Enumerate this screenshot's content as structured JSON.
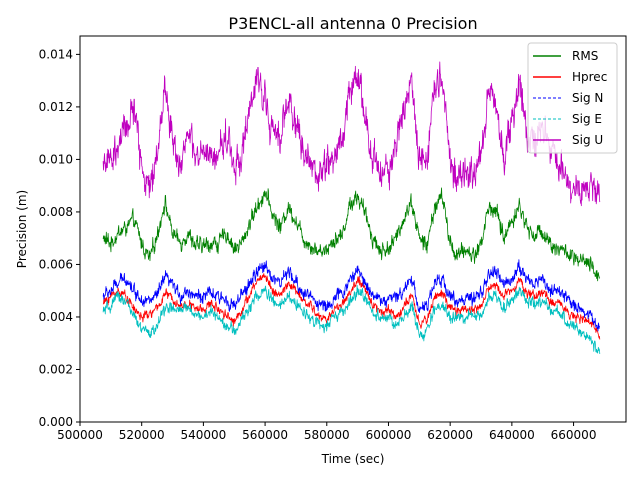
{
  "chart_data": {
    "type": "line",
    "title": "P3ENCL-all antenna 0 Precision",
    "xlabel": "Time (sec)",
    "ylabel": "Precision (m)",
    "xlim": [
      500000,
      677000
    ],
    "ylim": [
      0.0,
      0.0147
    ],
    "x_ticks": [
      500000,
      520000,
      540000,
      560000,
      580000,
      600000,
      620000,
      640000,
      660000
    ],
    "x_tick_labels": [
      "500000",
      "520000",
      "540000",
      "560000",
      "580000",
      "600000",
      "620000",
      "640000",
      "660000"
    ],
    "y_ticks": [
      0.0,
      0.002,
      0.004,
      0.006,
      0.008,
      0.01,
      0.012,
      0.014
    ],
    "y_tick_labels": [
      "0.000",
      "0.002",
      "0.004",
      "0.006",
      "0.008",
      "0.010",
      "0.012",
      "0.014"
    ],
    "legend_position": "top-right",
    "x": [
      507500,
      510000,
      512500,
      515000,
      517500,
      520000,
      522500,
      525000,
      527500,
      530000,
      532500,
      535000,
      537500,
      540000,
      542500,
      545000,
      547500,
      550000,
      552500,
      555000,
      557500,
      560000,
      562500,
      565000,
      567500,
      570000,
      572500,
      575000,
      577500,
      580000,
      582500,
      585000,
      587500,
      590000,
      592500,
      595000,
      597500,
      600000,
      602500,
      605000,
      607500,
      610000,
      612500,
      615000,
      617500,
      620000,
      622500,
      625000,
      627500,
      630000,
      632500,
      635000,
      637500,
      640000,
      642500,
      645000,
      647500,
      650000,
      652500,
      655000,
      657500,
      660000,
      662500,
      665000,
      667500,
      668500
    ],
    "series": [
      {
        "name": "RMS",
        "color": "#008000",
        "style": "solid",
        "noise": 0.00035,
        "values": [
          0.007,
          0.0068,
          0.0072,
          0.0074,
          0.0077,
          0.0068,
          0.0062,
          0.0071,
          0.0084,
          0.0072,
          0.0068,
          0.0072,
          0.0067,
          0.0067,
          0.0068,
          0.0068,
          0.0072,
          0.0066,
          0.0068,
          0.0076,
          0.0082,
          0.0088,
          0.0079,
          0.0074,
          0.0082,
          0.0077,
          0.007,
          0.0067,
          0.0065,
          0.0066,
          0.007,
          0.0071,
          0.0083,
          0.0086,
          0.0079,
          0.007,
          0.0065,
          0.0066,
          0.007,
          0.0078,
          0.0084,
          0.007,
          0.0067,
          0.0082,
          0.0086,
          0.0068,
          0.0063,
          0.0066,
          0.0063,
          0.0068,
          0.0082,
          0.008,
          0.007,
          0.0077,
          0.0082,
          0.0074,
          0.0071,
          0.0073,
          0.0068,
          0.0066,
          0.0065,
          0.0062,
          0.0061,
          0.006,
          0.0056,
          0.0057
        ]
      },
      {
        "name": "Hprec",
        "color": "#ff0000",
        "style": "solid",
        "noise": 0.0002,
        "values": [
          0.0045,
          0.0048,
          0.005,
          0.0048,
          0.0043,
          0.004,
          0.0041,
          0.0043,
          0.0049,
          0.0047,
          0.0044,
          0.0045,
          0.0043,
          0.0043,
          0.0045,
          0.0043,
          0.0041,
          0.0038,
          0.0043,
          0.0048,
          0.0054,
          0.0056,
          0.005,
          0.0048,
          0.0053,
          0.005,
          0.0046,
          0.0044,
          0.004,
          0.0039,
          0.0043,
          0.0045,
          0.0049,
          0.0054,
          0.005,
          0.0045,
          0.0042,
          0.0043,
          0.004,
          0.0044,
          0.0048,
          0.0037,
          0.0039,
          0.0048,
          0.0049,
          0.0043,
          0.0042,
          0.0043,
          0.0043,
          0.0044,
          0.0051,
          0.0052,
          0.0048,
          0.0051,
          0.0054,
          0.0049,
          0.0048,
          0.005,
          0.0045,
          0.0046,
          0.0043,
          0.004,
          0.0039,
          0.0038,
          0.0035,
          0.0034
        ]
      },
      {
        "name": "Sig N",
        "color": "#0000ff",
        "style": "dashed",
        "noise": 0.00028,
        "values": [
          0.0048,
          0.005,
          0.0053,
          0.0055,
          0.005,
          0.0047,
          0.0046,
          0.0048,
          0.0055,
          0.0052,
          0.0048,
          0.005,
          0.0048,
          0.0048,
          0.0049,
          0.0047,
          0.0047,
          0.0044,
          0.0048,
          0.0053,
          0.0057,
          0.006,
          0.0055,
          0.0053,
          0.0057,
          0.0053,
          0.0049,
          0.0048,
          0.0045,
          0.0044,
          0.0047,
          0.0049,
          0.0054,
          0.0058,
          0.0053,
          0.0049,
          0.0046,
          0.0047,
          0.0047,
          0.0051,
          0.0055,
          0.0043,
          0.0044,
          0.0053,
          0.0054,
          0.0048,
          0.0046,
          0.0047,
          0.0046,
          0.0049,
          0.0056,
          0.0057,
          0.0052,
          0.0055,
          0.0059,
          0.0054,
          0.0053,
          0.0055,
          0.005,
          0.005,
          0.0047,
          0.0045,
          0.0043,
          0.0041,
          0.0037,
          0.0036
        ]
      },
      {
        "name": "Sig E",
        "color": "#00bfbf",
        "style": "dashed",
        "noise": 0.00025,
        "values": [
          0.0042,
          0.0044,
          0.0048,
          0.0046,
          0.004,
          0.0035,
          0.0034,
          0.0036,
          0.0044,
          0.0043,
          0.0042,
          0.0044,
          0.0041,
          0.004,
          0.0042,
          0.004,
          0.0037,
          0.0034,
          0.0039,
          0.0044,
          0.0048,
          0.005,
          0.0046,
          0.0044,
          0.0048,
          0.0045,
          0.0042,
          0.004,
          0.0037,
          0.0036,
          0.004,
          0.0042,
          0.0045,
          0.005,
          0.0047,
          0.0042,
          0.004,
          0.004,
          0.0036,
          0.004,
          0.0044,
          0.0033,
          0.0034,
          0.0043,
          0.0045,
          0.004,
          0.0039,
          0.004,
          0.004,
          0.0041,
          0.0047,
          0.0048,
          0.0044,
          0.0047,
          0.005,
          0.0046,
          0.0044,
          0.0046,
          0.0042,
          0.0042,
          0.0039,
          0.0036,
          0.0034,
          0.0032,
          0.0028,
          0.0027
        ]
      },
      {
        "name": "Sig U",
        "color": "#bf00bf",
        "style": "solid",
        "noise": 0.0007,
        "values": [
          0.01,
          0.0098,
          0.0105,
          0.0112,
          0.012,
          0.0098,
          0.0088,
          0.0102,
          0.0128,
          0.0108,
          0.0098,
          0.011,
          0.01,
          0.0102,
          0.01,
          0.0102,
          0.011,
          0.0098,
          0.0102,
          0.0118,
          0.013,
          0.0125,
          0.0108,
          0.011,
          0.0122,
          0.0115,
          0.0102,
          0.0098,
          0.0094,
          0.0098,
          0.0102,
          0.0108,
          0.0126,
          0.0132,
          0.0115,
          0.01,
          0.0094,
          0.0096,
          0.0106,
          0.012,
          0.0128,
          0.0102,
          0.01,
          0.013,
          0.0132,
          0.0098,
          0.0092,
          0.0096,
          0.0092,
          0.0102,
          0.0128,
          0.0118,
          0.01,
          0.0115,
          0.0128,
          0.011,
          0.0108,
          0.0112,
          0.0103,
          0.0098,
          0.0095,
          0.009,
          0.009,
          0.0092,
          0.0084,
          0.009
        ]
      }
    ]
  }
}
